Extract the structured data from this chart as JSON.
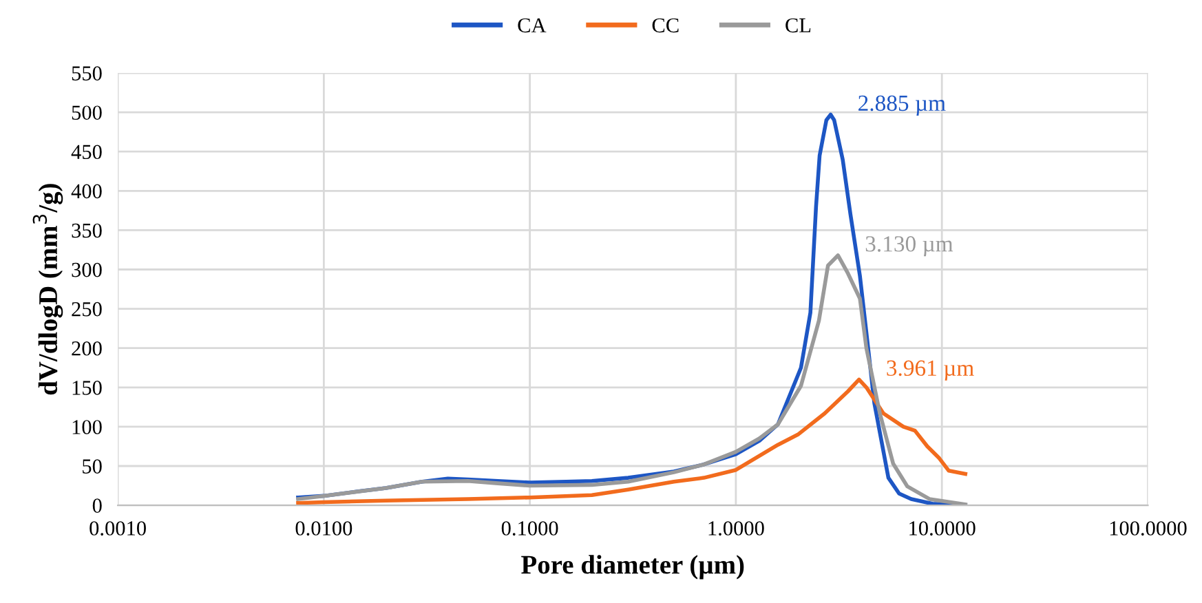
{
  "chart_data": {
    "type": "line",
    "xlabel": "Pore diameter (µm)",
    "ylabel": "dV/dlogD (mm$^{3}$/g)",
    "log": "x",
    "xlim": [
      0.001,
      100
    ],
    "xticks": [
      {
        "value": 0.001,
        "label": "0.0010"
      },
      {
        "value": 0.01,
        "label": "0.0100"
      },
      {
        "value": 0.1,
        "label": "0.1000"
      },
      {
        "value": 1,
        "label": "1.0000"
      },
      {
        "value": 10,
        "label": "10.0000"
      },
      {
        "value": 100,
        "label": "100.0000"
      }
    ],
    "ylim": [
      0,
      550
    ],
    "yticks": [
      0,
      50,
      100,
      150,
      200,
      250,
      300,
      350,
      400,
      450,
      500,
      550
    ],
    "grid": true,
    "legend": "top",
    "marker": "none",
    "line_style": "solid",
    "series": [
      {
        "name": "CA",
        "color": "#1d56c4",
        "x": [
          0.0075,
          0.01,
          0.015,
          0.02,
          0.03,
          0.04,
          0.05,
          0.07,
          0.1,
          0.15,
          0.2,
          0.3,
          0.5,
          0.7,
          1.0,
          1.3,
          1.6,
          2.07,
          2.3,
          2.45,
          2.55,
          2.75,
          2.885,
          3.0,
          3.3,
          3.6,
          4.0,
          4.3,
          4.7,
          5.5,
          6.2,
          7.1,
          9,
          13
        ],
        "values": [
          10,
          12,
          18,
          22,
          30,
          34,
          33,
          31,
          29,
          30,
          31,
          35,
          43,
          52,
          65,
          82,
          103,
          175,
          245,
          380,
          445,
          490,
          497,
          490,
          440,
          370,
          292,
          220,
          130,
          35,
          15,
          8,
          2,
          0
        ]
      },
      {
        "name": "CC",
        "color": "#f26b1d",
        "x": [
          0.0075,
          0.01,
          0.02,
          0.05,
          0.1,
          0.2,
          0.3,
          0.5,
          0.7,
          1.0,
          1.6,
          2.0,
          2.7,
          3.5,
          3.961,
          4.3,
          5.2,
          6.5,
          7.4,
          8.5,
          9.7,
          10.8,
          13
        ],
        "values": [
          3,
          4,
          6,
          8,
          10,
          13,
          20,
          30,
          35,
          45,
          77,
          90,
          117,
          145,
          160,
          150,
          117,
          100,
          95,
          75,
          60,
          44,
          40
        ]
      },
      {
        "name": "CL",
        "color": "#9a9a9a",
        "x": [
          0.0075,
          0.01,
          0.02,
          0.03,
          0.05,
          0.07,
          0.1,
          0.2,
          0.3,
          0.5,
          0.7,
          1.0,
          1.3,
          1.6,
          2.07,
          2.53,
          2.8,
          3.13,
          3.5,
          4.0,
          4.3,
          5.0,
          5.8,
          6.8,
          8.7,
          13
        ],
        "values": [
          8,
          12,
          22,
          30,
          31,
          28,
          25,
          26,
          30,
          42,
          52,
          68,
          85,
          103,
          152,
          235,
          305,
          318,
          295,
          263,
          200,
          117,
          53,
          24,
          8,
          1
        ]
      }
    ],
    "annotations": [
      {
        "text": "2.885 µm",
        "x": 2.885,
        "y": 497
      },
      {
        "text": "3.130 µm",
        "x": 3.13,
        "y": 318
      },
      {
        "text": "3.961 µm",
        "x": 3.961,
        "y": 160
      }
    ]
  }
}
